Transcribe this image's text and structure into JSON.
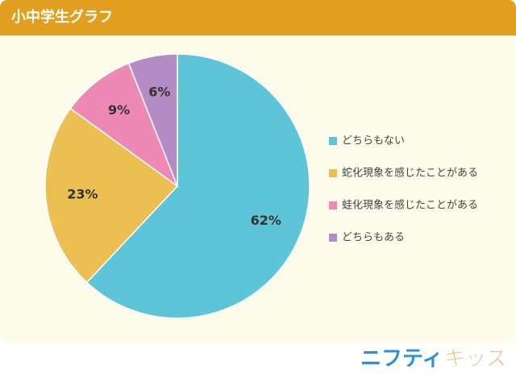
{
  "header": {
    "title": "小中学生グラフ"
  },
  "chart_data": {
    "type": "pie",
    "categories": [
      "どちらもない",
      "蛇化現象を感じたことがある",
      "蛙化現象を感じたことがある",
      "どちらもある"
    ],
    "values": [
      62,
      23,
      9,
      6
    ],
    "value_labels": [
      "62%",
      "23%",
      "9%",
      "6%"
    ],
    "colors": [
      "#5ec4d7",
      "#ecbf52",
      "#ee88b4",
      "#b48bc3"
    ],
    "legend": "right"
  },
  "logo": {
    "part1": "ニフティ",
    "part2": "キッズ"
  }
}
